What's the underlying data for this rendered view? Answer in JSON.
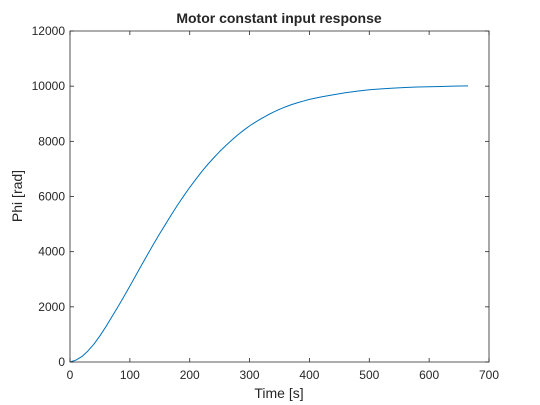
{
  "chart_data": {
    "type": "line",
    "title": "Motor constant input response",
    "xlabel": "Time [s]",
    "ylabel": "Phi [rad]",
    "xlim": [
      0,
      700
    ],
    "ylim": [
      0,
      12000
    ],
    "xticks": [
      0,
      100,
      200,
      300,
      400,
      500,
      600,
      700
    ],
    "yticks": [
      0,
      2000,
      4000,
      6000,
      8000,
      10000,
      12000
    ],
    "grid": false,
    "series": [
      {
        "color": "#0072BD",
        "x": [
          0,
          10,
          20,
          30,
          40,
          50,
          60,
          70,
          80,
          90,
          100,
          110,
          120,
          130,
          140,
          150,
          160,
          170,
          180,
          190,
          200,
          210,
          220,
          230,
          240,
          250,
          260,
          270,
          280,
          290,
          300,
          310,
          320,
          330,
          340,
          350,
          360,
          370,
          380,
          390,
          400,
          420,
          440,
          460,
          480,
          500,
          520,
          540,
          560,
          580,
          600,
          620,
          640,
          665
        ],
        "y": [
          0,
          70,
          200,
          400,
          650,
          950,
          1280,
          1640,
          2000,
          2370,
          2750,
          3140,
          3530,
          3910,
          4290,
          4660,
          5010,
          5360,
          5700,
          6020,
          6330,
          6620,
          6900,
          7160,
          7400,
          7630,
          7840,
          8040,
          8230,
          8400,
          8560,
          8700,
          8830,
          8950,
          9060,
          9160,
          9250,
          9330,
          9400,
          9460,
          9520,
          9610,
          9690,
          9760,
          9820,
          9870,
          9900,
          9930,
          9950,
          9970,
          9980,
          9990,
          10000,
          10010
        ]
      }
    ]
  }
}
